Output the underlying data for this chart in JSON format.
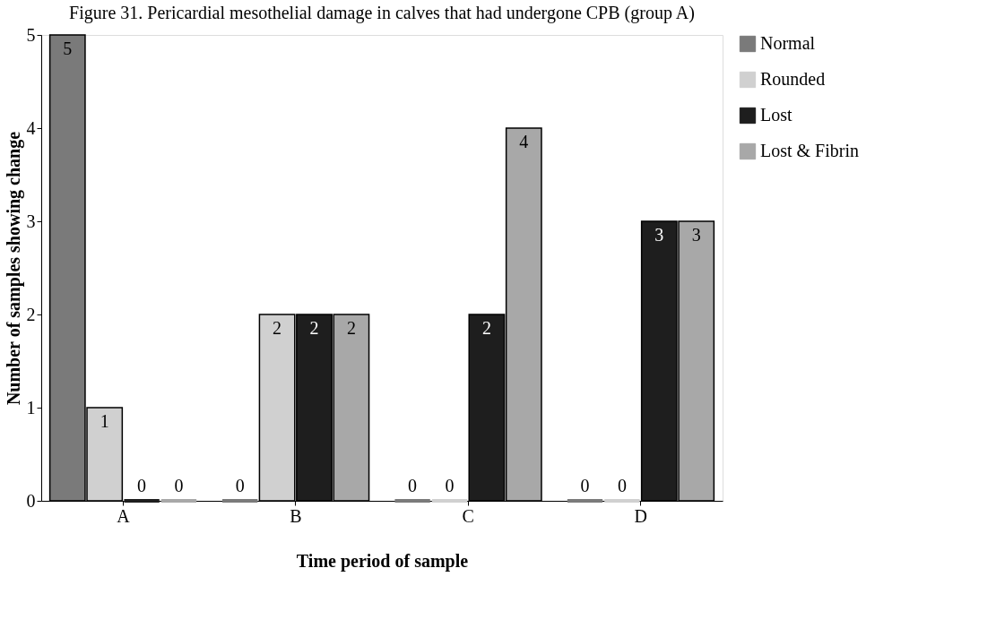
{
  "chart_data": {
    "type": "bar",
    "title": "Figure 31.  Pericardial mesothelial damage in calves that had undergone CPB (group A)",
    "xlabel": "Time period of sample",
    "ylabel": "Number of samples showing change",
    "categories": [
      "A",
      "B",
      "C",
      "D"
    ],
    "series": [
      {
        "name": "Normal",
        "color": "#7a7a7a",
        "values": [
          5,
          0,
          0,
          0
        ]
      },
      {
        "name": "Rounded",
        "color": "#d0d0d0",
        "values": [
          1,
          2,
          0,
          0
        ]
      },
      {
        "name": "Lost",
        "color": "#1e1e1e",
        "values": [
          0,
          2,
          2,
          3
        ]
      },
      {
        "name": "Lost & Fibrin",
        "color": "#a8a8a8",
        "values": [
          0,
          2,
          4,
          3
        ]
      }
    ],
    "ylim": [
      0,
      5
    ],
    "yticks": [
      0,
      1,
      2,
      3,
      4,
      5
    ],
    "grid": false,
    "legend": "right",
    "data_labels": true
  }
}
